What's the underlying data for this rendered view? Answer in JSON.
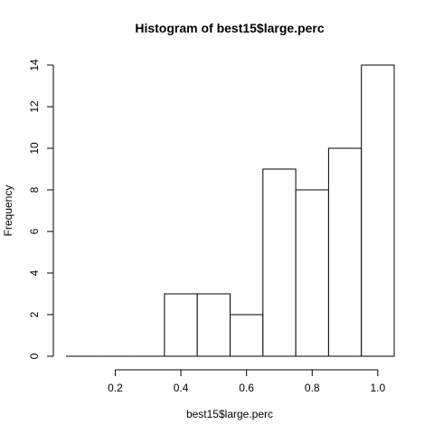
{
  "chart_data": {
    "type": "bar",
    "subtype": "histogram",
    "title": "Histogram of best15$large.perc",
    "xlabel": "best15$large.perc",
    "ylabel": "Frequency",
    "bin_edges": [
      0.05,
      0.15,
      0.25,
      0.35,
      0.45,
      0.55,
      0.65,
      0.75,
      0.85,
      0.95,
      1.05
    ],
    "values": [
      0,
      0,
      0,
      3,
      3,
      2,
      9,
      8,
      10,
      14
    ],
    "xlim": [
      0.05,
      1.05
    ],
    "ylim": [
      0,
      14
    ],
    "x_ticks": [
      0.2,
      0.4,
      0.6,
      0.8,
      1.0
    ],
    "x_tick_labels": [
      "0.2",
      "0.4",
      "0.6",
      "0.8",
      "1.0"
    ],
    "y_ticks": [
      0,
      2,
      4,
      6,
      8,
      10,
      12,
      14
    ],
    "y_tick_labels": [
      "0",
      "2",
      "4",
      "6",
      "8",
      "10",
      "12",
      "14"
    ],
    "grid": false,
    "legend": "none",
    "colors": {
      "bar_fill": "#ffffff",
      "bar_stroke": "#000000"
    }
  }
}
